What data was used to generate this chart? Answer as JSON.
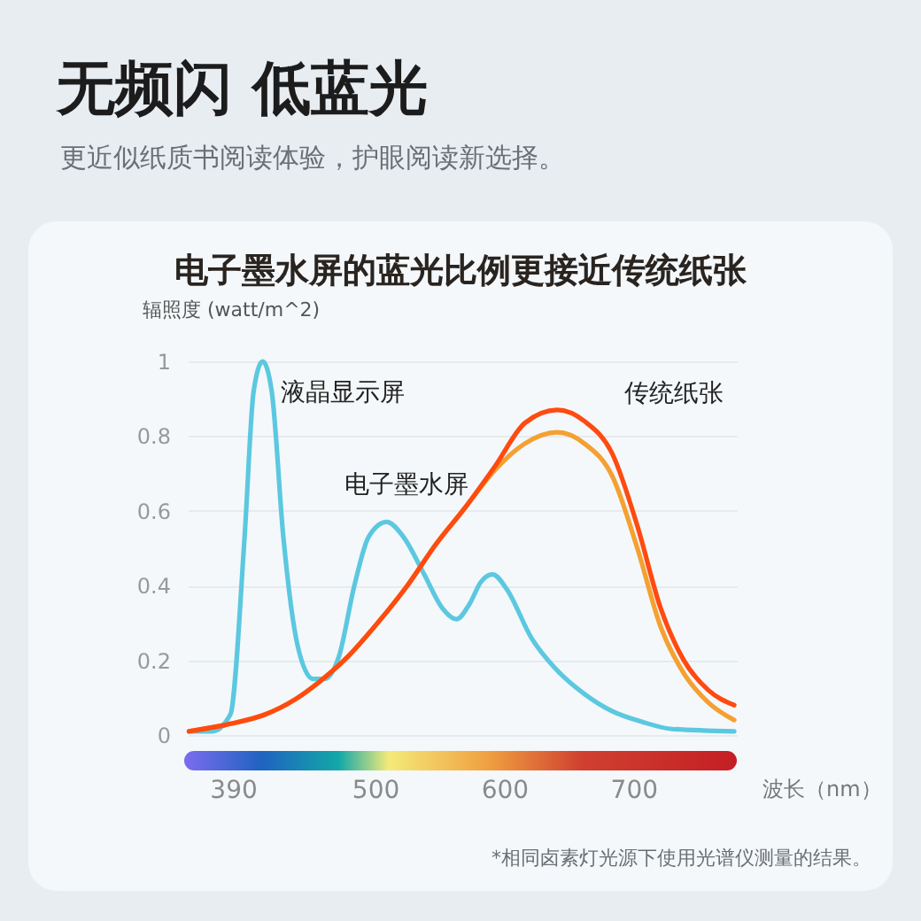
{
  "chart_data": {
    "type": "line",
    "title": "无频闪 低蓝光",
    "subtitle": "更近似纸质书阅读体验，护眼阅读新选择。",
    "annotations": [
      "电子墨水屏的蓝光比例更接近传统纸张",
      "*相同卤素灯光源下使用光谱仪测量的结果。"
    ],
    "ylabel": "辐照度 (watt/m^2)",
    "xlabel": "波长（nm）",
    "xlim": [
      355,
      780
    ],
    "xticks": [
      390,
      500,
      600,
      700
    ],
    "ylim": [
      0,
      1
    ],
    "yticks": [
      0,
      0.2,
      0.4,
      0.6,
      0.8,
      1
    ],
    "grid": "y",
    "series": [
      {
        "name": "液晶显示屏",
        "color": "#5cc8e0",
        "x": [
          356,
          374,
          388,
          399,
          406,
          413,
          420,
          429,
          440,
          452,
          461,
          472,
          484,
          495,
          509,
          522,
          538,
          552,
          563,
          573,
          582,
          591,
          602,
          621,
          639,
          662,
          684,
          707,
          730,
          778
        ],
        "values": [
          0.01,
          0.01,
          0.055,
          0.53,
          0.92,
          1,
          0.92,
          0.53,
          0.24,
          0.15,
          0.15,
          0.21,
          0.4,
          0.53,
          0.57,
          0.53,
          0.43,
          0.34,
          0.31,
          0.35,
          0.41,
          0.43,
          0.39,
          0.26,
          0.18,
          0.11,
          0.063,
          0.035,
          0.016,
          0.01
        ]
      },
      {
        "name": "电子墨水屏",
        "color": "#f5a031",
        "x": [
          356,
          388,
          415,
          438,
          456,
          479,
          502,
          525,
          547,
          570,
          593,
          616,
          641,
          662,
          684,
          703,
          721,
          739,
          758,
          778
        ],
        "values": [
          0.01,
          0.03,
          0.055,
          0.095,
          0.14,
          0.21,
          0.3,
          0.4,
          0.51,
          0.61,
          0.71,
          0.78,
          0.81,
          0.78,
          0.69,
          0.5,
          0.29,
          0.165,
          0.087,
          0.04
        ]
      },
      {
        "name": "传统纸张",
        "color": "#ff4a10",
        "x": [
          356,
          388,
          415,
          438,
          456,
          479,
          502,
          525,
          547,
          570,
          593,
          616,
          641,
          662,
          684,
          703,
          721,
          739,
          758,
          778
        ],
        "values": [
          0.01,
          0.03,
          0.055,
          0.095,
          0.14,
          0.21,
          0.3,
          0.4,
          0.51,
          0.61,
          0.72,
          0.835,
          0.87,
          0.84,
          0.75,
          0.56,
          0.34,
          0.2,
          0.12,
          0.08
        ]
      }
    ]
  }
}
